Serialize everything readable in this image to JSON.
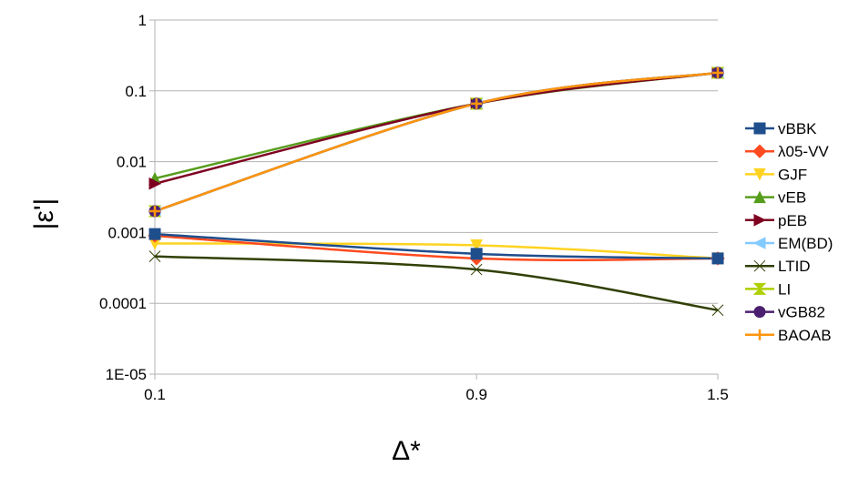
{
  "chart_data": {
    "type": "line",
    "title": "",
    "xlabel": "Δ*",
    "ylabel": "|ε'|",
    "yscale": "log",
    "ylim": [
      1e-05,
      1
    ],
    "x": [
      0.1,
      0.9,
      1.5
    ],
    "x_tick_labels": [
      "0.1",
      "0.9",
      "1.5"
    ],
    "y_ticks": [
      1,
      0.1,
      0.01,
      0.001,
      0.0001,
      1e-05
    ],
    "y_tick_labels": [
      "1",
      "0.1",
      "0.01",
      "0.001",
      "0.0001",
      "1E-05"
    ],
    "grid": "horizontal major gridlines",
    "legend_position": "right",
    "series": [
      {
        "name": "vBBK",
        "color": "#1f4e8c",
        "marker": "square",
        "values": [
          0.00095,
          0.0005,
          0.00043
        ]
      },
      {
        "name": "λ05-VV",
        "color": "#ff4b1f",
        "marker": "diamond",
        "values": [
          0.0009,
          0.00043,
          0.00043
        ]
      },
      {
        "name": "GJF",
        "color": "#ffd320",
        "marker": "triangle-down",
        "values": [
          0.0007,
          0.00066,
          0.00043
        ]
      },
      {
        "name": "vEB",
        "color": "#579d1c",
        "marker": "triangle-up",
        "values": [
          0.0058,
          0.066,
          0.18
        ]
      },
      {
        "name": "pEB",
        "color": "#7e0021",
        "marker": "triangle-right",
        "values": [
          0.0049,
          0.066,
          0.18
        ]
      },
      {
        "name": "EM(BD)",
        "color": "#83caff",
        "marker": "triangle-left",
        "values": [
          0.002,
          0.066,
          0.18
        ]
      },
      {
        "name": "LTID",
        "color": "#314004",
        "marker": "bowtie",
        "values": [
          0.00046,
          0.0003,
          8e-05
        ]
      },
      {
        "name": "LI",
        "color": "#aecf00",
        "marker": "hourglass",
        "values": [
          0.002,
          0.066,
          0.18
        ]
      },
      {
        "name": "vGB82",
        "color": "#4b1f6f",
        "marker": "circle",
        "values": [
          0.002,
          0.066,
          0.18
        ]
      },
      {
        "name": "BAOAB",
        "color": "#ff950e",
        "marker": "plus",
        "values": [
          0.002,
          0.066,
          0.18
        ]
      }
    ]
  }
}
